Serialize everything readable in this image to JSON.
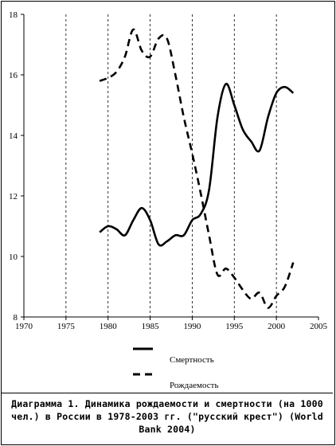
{
  "chart_data": {
    "type": "line",
    "title": "",
    "xlim": [
      1970,
      2005
    ],
    "ylim": [
      8,
      18
    ],
    "xticks": [
      "1970",
      "1975",
      "1980",
      "1985",
      "1990",
      "1995",
      "2000",
      "2005"
    ],
    "yticks": [
      "8",
      "10",
      "12",
      "14",
      "16",
      "18"
    ],
    "grid": "vertical dashed",
    "legend_position": "below plot",
    "series": [
      {
        "name": "Смертность",
        "style": "solid",
        "x": [
          1979,
          1980,
          1981,
          1982,
          1983,
          1984,
          1985,
          1986,
          1987,
          1988,
          1989,
          1990,
          1991,
          1992,
          1993,
          1994,
          1995,
          1996,
          1997,
          1998,
          1999,
          2000,
          2001,
          2002
        ],
        "y": [
          10.8,
          11.0,
          10.9,
          10.7,
          11.2,
          11.6,
          11.2,
          10.4,
          10.5,
          10.7,
          10.7,
          11.2,
          11.4,
          12.2,
          14.6,
          15.7,
          15.0,
          14.2,
          13.8,
          13.5,
          14.6,
          15.4,
          15.6,
          15.4
        ]
      },
      {
        "name": "Рождаемость",
        "style": "dashed",
        "x": [
          1979,
          1980,
          1981,
          1982,
          1983,
          1984,
          1985,
          1986,
          1987,
          1988,
          1989,
          1990,
          1991,
          1992,
          1993,
          1994,
          1995,
          1996,
          1997,
          1998,
          1999,
          2000,
          2001,
          2002
        ],
        "y": [
          15.8,
          15.9,
          16.1,
          16.6,
          17.5,
          16.8,
          16.6,
          17.2,
          17.2,
          16.0,
          14.6,
          13.4,
          12.1,
          10.7,
          9.4,
          9.6,
          9.3,
          8.9,
          8.6,
          8.8,
          8.3,
          8.7,
          9.0,
          9.8
        ]
      }
    ]
  },
  "caption": "Диаграмма 1. Динамика рождаемости и смертности (на 1000 чел.) в России в 1978-2003 гг. (\"русский крест\") (World Bank 2004)"
}
